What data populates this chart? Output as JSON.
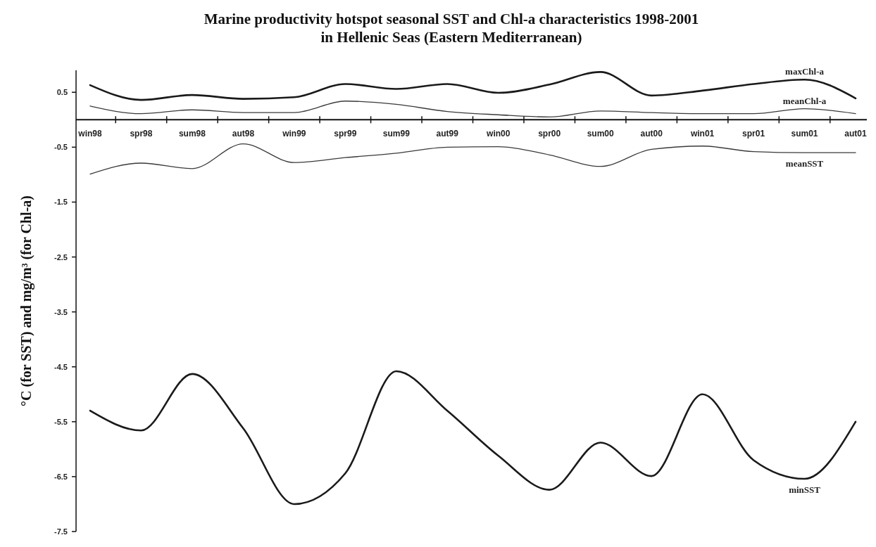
{
  "chart_data": {
    "type": "line",
    "title": "Marine productivity hotspot seasonal SST and Chl-a characteristics 1998-2001\nin Hellenic Seas (Eastern Mediterranean)",
    "ylabel": "°C (for SST) and mg/m³ (for Chl-a)",
    "categories": [
      "win98",
      "spr98",
      "sum98",
      "aut98",
      "win99",
      "spr99",
      "sum99",
      "aut99",
      "win00",
      "spr00",
      "sum00",
      "aut00",
      "win01",
      "spr01",
      "sum01",
      "aut01"
    ],
    "series": [
      {
        "name": "maxChl-a",
        "color": "#1a1a1a",
        "values": [
          0.63,
          0.36,
          0.45,
          0.38,
          0.41,
          0.65,
          0.56,
          0.65,
          0.49,
          0.64,
          0.87,
          0.44,
          0.53,
          0.65,
          0.73,
          0.39
        ]
      },
      {
        "name": "meanChl-a",
        "color": "#3a3a3a",
        "values": [
          0.25,
          0.11,
          0.18,
          0.13,
          0.13,
          0.34,
          0.28,
          0.15,
          0.09,
          0.05,
          0.16,
          0.13,
          0.11,
          0.11,
          0.2,
          0.11
        ]
      },
      {
        "name": "meanSST",
        "color": "#3a3a3a",
        "values": [
          -0.99,
          -0.79,
          -0.89,
          -0.44,
          -0.78,
          -0.69,
          -0.61,
          -0.5,
          -0.49,
          -0.64,
          -0.85,
          -0.54,
          -0.48,
          -0.58,
          -0.6,
          -0.6
        ]
      },
      {
        "name": "minSST",
        "color": "#1a1a1a",
        "values": [
          -5.3,
          -5.66,
          -4.63,
          -5.62,
          -7.0,
          -6.44,
          -4.58,
          -5.3,
          -6.12,
          -6.74,
          -5.88,
          -6.49,
          -5.0,
          -6.2,
          -6.54,
          -5.5
        ]
      }
    ],
    "ylim": [
      -7.5,
      0.9
    ],
    "yticks": [
      0.5,
      -0.5,
      -1.5,
      -2.5,
      -3.5,
      -4.5,
      -5.5,
      -6.5,
      -7.5
    ],
    "grid": false,
    "legend": false,
    "marker": "none",
    "line_style": "solid"
  }
}
